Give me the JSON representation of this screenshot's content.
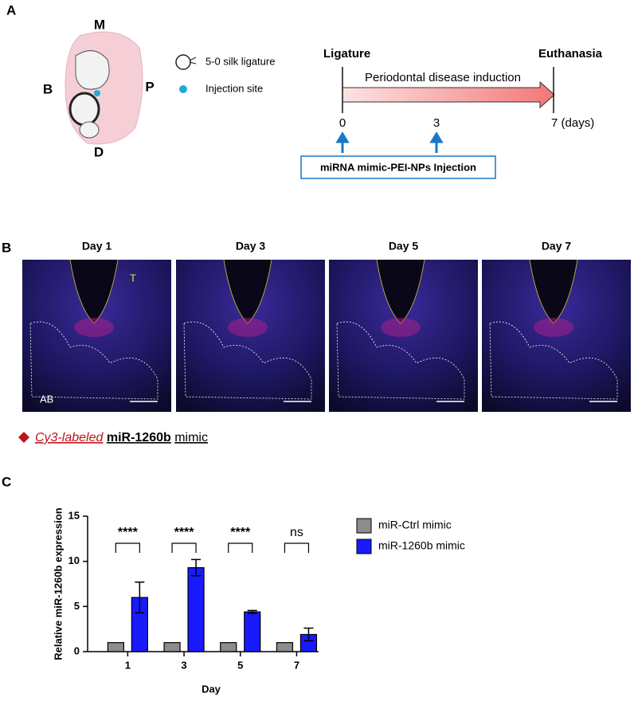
{
  "panel_a": {
    "letter": "A",
    "diagram": {
      "labels": [
        "M",
        "B",
        "P",
        "D"
      ],
      "legend": [
        "5-0 silk ligature",
        "Injection site"
      ]
    },
    "timeline": {
      "start": "Ligature",
      "end": "Euthanasia",
      "arrow_label": "Periodontal disease induction",
      "ticks": [
        "0",
        "3",
        "7 (days)"
      ],
      "box": "miRNA mimic-PEI-NPs Injection"
    }
  },
  "panel_b": {
    "letter": "B",
    "images": [
      "Day 1",
      "Day 3",
      "Day 5",
      "Day 7"
    ],
    "marks": [
      "T",
      "AB"
    ],
    "legend": {
      "italic": "Cy3-labeled",
      "bold": "miR-1260b",
      "rest": "mimic"
    }
  },
  "panel_c": {
    "letter": "C"
  },
  "chart_data": {
    "type": "bar",
    "xlabel": "Day",
    "ylabel": "Relative miR-1260b expression",
    "categories": [
      "1",
      "3",
      "5",
      "7"
    ],
    "series": [
      {
        "name": "miR-Ctrl mimic",
        "color": "#8c8c8c",
        "values": [
          1,
          1,
          1,
          1
        ],
        "errors": [
          0,
          0,
          0,
          0
        ]
      },
      {
        "name": "miR-1260b mimic",
        "color": "#1a1aff",
        "values": [
          6.0,
          9.3,
          4.4,
          1.9
        ],
        "errors": [
          1.7,
          0.9,
          0.15,
          0.7
        ]
      }
    ],
    "significance": [
      "****",
      "****",
      "****",
      "ns"
    ],
    "ylim": [
      0,
      15
    ],
    "yticks": [
      0,
      5,
      10,
      15
    ]
  }
}
